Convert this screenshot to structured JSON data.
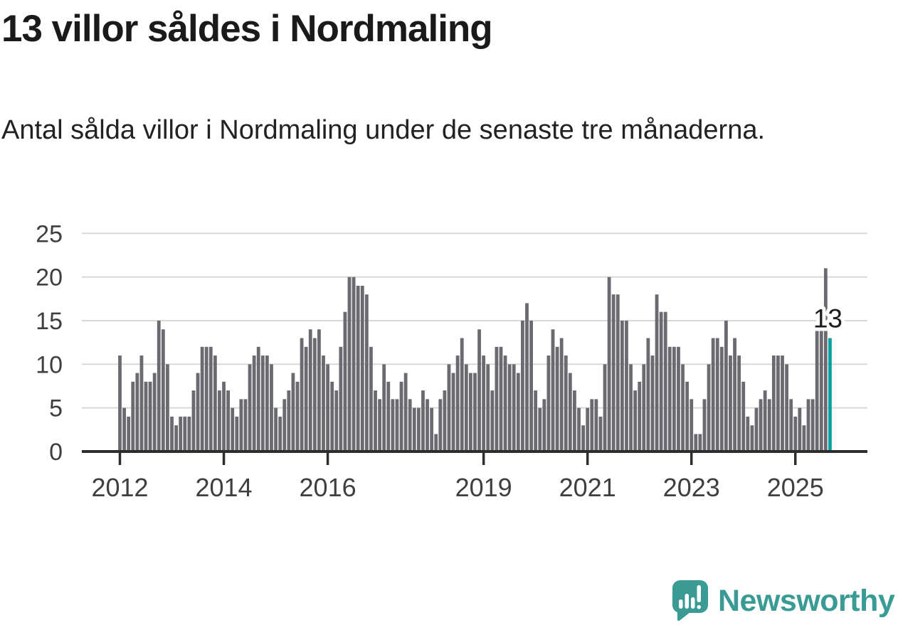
{
  "header": {
    "title": "13 villor såldes i Nordmaling",
    "subtitle": "Antal sålda villor i Nordmaling under de senaste tre månaderna."
  },
  "chart_data": {
    "type": "bar",
    "title": "13 villor såldes i Nordmaling",
    "xlabel": "",
    "ylabel": "",
    "ylim": [
      0,
      25
    ],
    "yticks": [
      0,
      5,
      10,
      15,
      20,
      25
    ],
    "grid": "horizontal",
    "x_unit": "month",
    "x_start": "2012",
    "xticks": [
      {
        "label": "2012",
        "index": 0
      },
      {
        "label": "2014",
        "index": 24
      },
      {
        "label": "2016",
        "index": 48
      },
      {
        "label": "2019",
        "index": 84
      },
      {
        "label": "2021",
        "index": 108
      },
      {
        "label": "2023",
        "index": 132
      },
      {
        "label": "2025",
        "index": 156
      }
    ],
    "values": [
      11,
      5,
      4,
      8,
      9,
      11,
      8,
      8,
      9,
      15,
      14,
      10,
      4,
      3,
      4,
      4,
      4,
      7,
      9,
      12,
      12,
      12,
      11,
      7,
      8,
      7,
      5,
      4,
      6,
      6,
      10,
      11,
      12,
      11,
      11,
      10,
      5,
      4,
      6,
      7,
      9,
      8,
      13,
      12,
      14,
      13,
      14,
      11,
      10,
      8,
      7,
      12,
      16,
      20,
      20,
      19,
      19,
      18,
      12,
      7,
      6,
      10,
      8,
      6,
      6,
      8,
      9,
      6,
      5,
      5,
      7,
      6,
      5,
      2,
      6,
      7,
      10,
      9,
      11,
      13,
      10,
      9,
      9,
      14,
      11,
      10,
      7,
      12,
      12,
      11,
      10,
      10,
      9,
      15,
      17,
      15,
      7,
      5,
      6,
      11,
      14,
      12,
      13,
      11,
      9,
      7,
      5,
      3,
      5,
      6,
      6,
      4,
      10,
      20,
      18,
      18,
      15,
      15,
      10,
      7,
      8,
      10,
      13,
      11,
      18,
      16,
      16,
      12,
      12,
      12,
      10,
      8,
      6,
      2,
      2,
      6,
      10,
      13,
      13,
      12,
      15,
      11,
      13,
      11,
      8,
      4,
      3,
      5,
      6,
      7,
      6,
      11,
      11,
      11,
      10,
      6,
      4,
      5,
      3,
      6,
      6,
      14,
      14,
      21,
      13
    ],
    "highlight_last": true,
    "annotation": {
      "text": "13",
      "value": 13
    },
    "colors": {
      "bar": "#6a6a70",
      "highlight": "#0ba09f",
      "gridline": "#d9d9d9",
      "axis": "#2d2d2d",
      "tick_label": "#3f3f3f",
      "annotation_text": "#1c1c1c"
    }
  },
  "footer": {
    "brand": "Newsworthy",
    "logo_icon": "speech-bubble-bar-chart-icon",
    "brand_color": "#3a9b95"
  }
}
